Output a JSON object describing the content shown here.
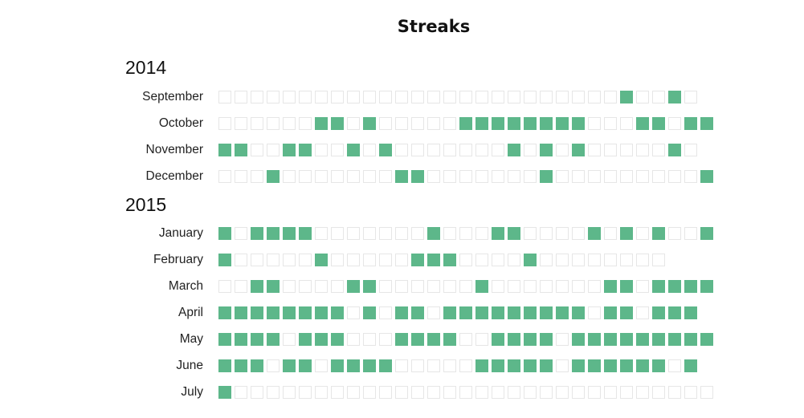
{
  "colors": {
    "filled": "#5db78a",
    "empty_stroke": "#e6e6e6",
    "empty_fill": "#ffffff"
  },
  "chart_data": {
    "type": "heatmap",
    "title": "Streaks",
    "years": [
      {
        "year": "2014",
        "months": [
          {
            "name": "September",
            "days": 30,
            "active": [
              26,
              29
            ]
          },
          {
            "name": "October",
            "days": 31,
            "active": [
              7,
              8,
              10,
              16,
              17,
              18,
              19,
              20,
              21,
              22,
              23,
              27,
              28,
              30,
              31
            ]
          },
          {
            "name": "November",
            "days": 30,
            "active": [
              1,
              2,
              5,
              6,
              9,
              11,
              19,
              21,
              23,
              29
            ]
          },
          {
            "name": "December",
            "days": 31,
            "active": [
              4,
              12,
              13,
              21,
              31
            ]
          }
        ]
      },
      {
        "year": "2015",
        "months": [
          {
            "name": "January",
            "days": 31,
            "active": [
              1,
              3,
              4,
              5,
              6,
              14,
              18,
              19,
              24,
              26,
              28,
              31
            ]
          },
          {
            "name": "February",
            "days": 28,
            "active": [
              1,
              7,
              13,
              14,
              15,
              20
            ]
          },
          {
            "name": "March",
            "days": 31,
            "active": [
              3,
              4,
              9,
              10,
              17,
              25,
              26,
              28,
              29,
              30,
              31
            ]
          },
          {
            "name": "April",
            "days": 30,
            "active": [
              1,
              2,
              3,
              4,
              5,
              6,
              7,
              8,
              10,
              12,
              13,
              15,
              16,
              17,
              18,
              19,
              20,
              21,
              22,
              23,
              25,
              26,
              28,
              29,
              30
            ]
          },
          {
            "name": "May",
            "days": 31,
            "active": [
              1,
              2,
              3,
              4,
              6,
              7,
              8,
              12,
              13,
              14,
              15,
              18,
              19,
              20,
              21,
              23,
              24,
              25,
              26,
              27,
              28,
              29,
              30,
              31
            ]
          },
          {
            "name": "June",
            "days": 30,
            "active": [
              1,
              2,
              3,
              5,
              6,
              8,
              9,
              10,
              11,
              17,
              18,
              19,
              20,
              21,
              23,
              24,
              25,
              26,
              27,
              28,
              30
            ]
          },
          {
            "name": "July",
            "days": 31,
            "active": [
              1
            ]
          }
        ]
      }
    ]
  }
}
